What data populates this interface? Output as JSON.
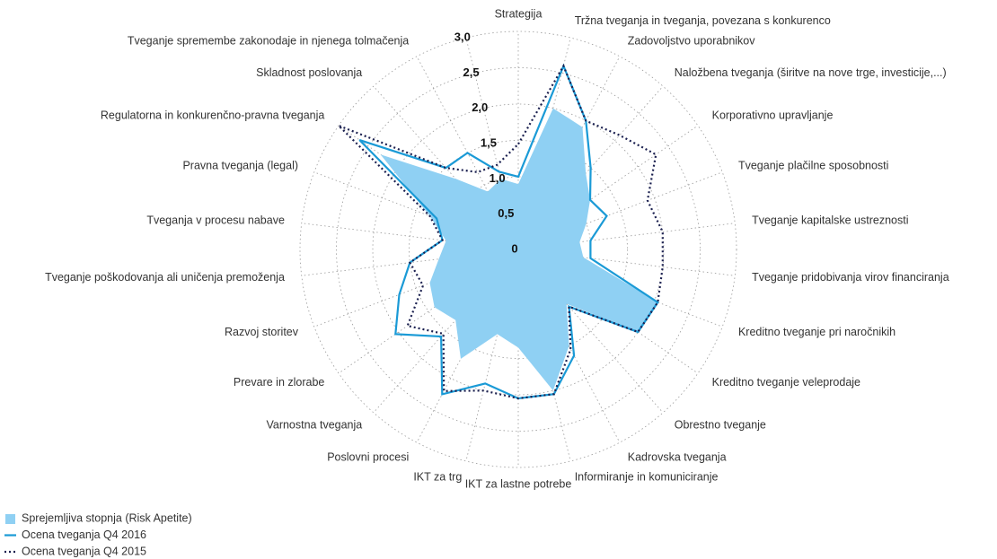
{
  "chart_data": {
    "type": "radar",
    "categories": [
      "Strategija",
      "Tržna tveganja in tveganja, povezana s konkurenco",
      "Zadovoljstvo uporabnikov",
      "Naložbena tveganja (širitve na  nove trge, investicije,...)",
      "Korporativno upravljanje",
      "Tveganje plačilne sposobnosti",
      "Tveganje kapitalske ustreznosti",
      "Tveganje pridobivanja virov financiranja",
      "Kreditno tveganje pri naročnikih",
      "Kreditno tveganje veleprodaje",
      "Obrestno tveganje",
      "Kadrovska tveganja",
      "Informiranje in komuniciranje",
      "IKT za lastne potrebe",
      "IKT za trg",
      "Poslovni procesi",
      "Varnostna tveganja",
      "Prevare in zlorabe",
      "Razvoj storitev",
      "Tveganje poškodovanja ali uničenja premoženja",
      "Tveganja v procesu nabave",
      "Pravna tveganja (legal)",
      "Regulatorna in konkurenčno-pravna tveganja",
      "Skladnost poslovanja",
      "Tveganje spremembe zakonodaje in njenega tolmačenja",
      null
    ],
    "series": [
      {
        "name": "Sprejemljiva stopnja (Risk Apetite)",
        "color": "#8fd0f3",
        "style": "area",
        "values": [
          0.9,
          2.0,
          1.9,
          1.4,
          1.2,
          1.0,
          0.85,
          0.9,
          2.05,
          2.0,
          1.0,
          1.5,
          2.0,
          1.35,
          1.2,
          1.7,
          1.3,
          1.4,
          1.3,
          1.1,
          1.0,
          1.3,
          2.3,
          1.3,
          0.9,
          1.0
        ]
      },
      {
        "name": "Ocena tveganja Q4 2016",
        "color": "#1a9ad6",
        "style": "solid",
        "values": [
          1.0,
          2.6,
          2.0,
          1.5,
          1.2,
          1.3,
          1.0,
          1.0,
          2.05,
          2.0,
          1.05,
          1.65,
          2.05,
          2.05,
          1.9,
          2.25,
          1.6,
          2.05,
          1.75,
          1.5,
          1.05,
          1.2,
          2.65,
          1.5,
          1.5,
          1.1
        ]
      },
      {
        "name": "Ocena tveganja Q4 2015",
        "color": "#1a1f4f",
        "style": "dotted",
        "values": [
          1.45,
          2.6,
          2.0,
          2.1,
          2.3,
          1.9,
          2.0,
          2.0,
          2.05,
          2.0,
          1.05,
          1.55,
          2.05,
          2.05,
          2.0,
          2.2,
          1.55,
          1.85,
          1.4,
          1.5,
          1.05,
          1.3,
          3.0,
          1.5,
          1.2,
          1.2
        ]
      }
    ],
    "ylim": [
      0,
      3
    ],
    "yticks": [
      0,
      {
        "value": 0.5,
        "label": "0,5"
      },
      {
        "value": 1,
        "label": "1,0"
      },
      {
        "value": 1.5,
        "label": "1,5"
      },
      {
        "value": 2,
        "label": "2,0"
      },
      {
        "value": 2.5,
        "label": "2,5"
      },
      {
        "value": 3,
        "label": "3,0"
      }
    ],
    "grid": true
  }
}
